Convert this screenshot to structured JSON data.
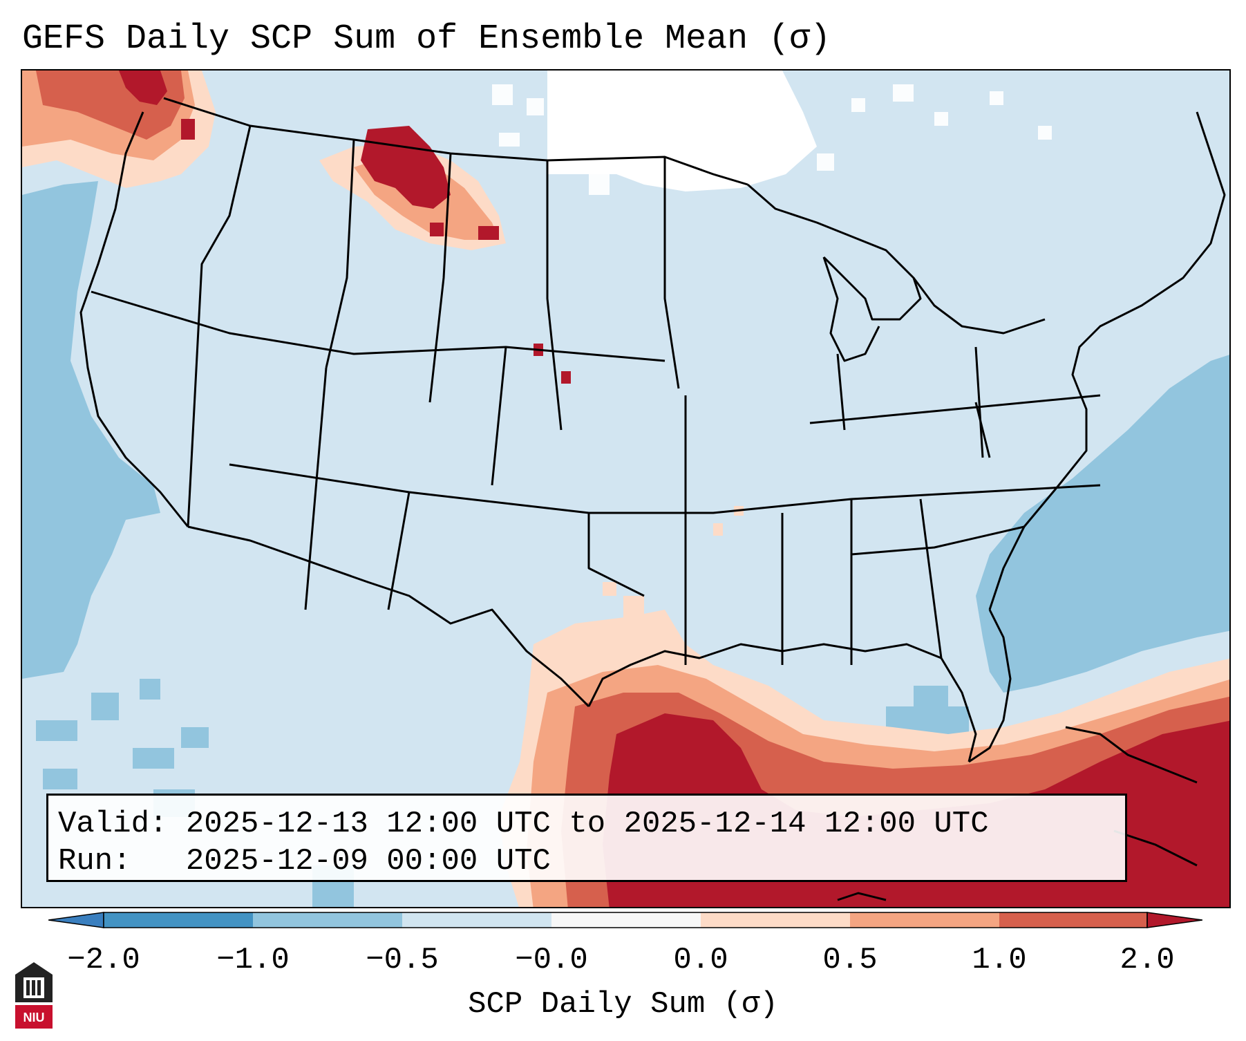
{
  "title": "GEFS Daily SCP Sum of Ensemble Mean (σ)",
  "info": {
    "valid": "Valid: 2025-12-13 12:00 UTC to 2025-12-14 12:00 UTC",
    "run": "Run:   2025-12-09 00:00 UTC"
  },
  "colorbar": {
    "label": "SCP Daily Sum (σ)",
    "ticks": [
      "−2.0",
      "−1.0",
      "−0.5",
      "−0.0",
      "0.0",
      "0.5",
      "1.0",
      "2.0"
    ],
    "colors": {
      "extend_low": "#3a7fbf",
      "bin_m2_m1": "#4393c3",
      "bin_m1_m05": "#92c5de",
      "bin_m05_m0": "#d1e5f0",
      "bin_m0_0": "#f7f7f7",
      "bin_0_05": "#fddbc7",
      "bin_05_1": "#f4a582",
      "bin_1_2": "#d6604d",
      "extend_high": "#b2182b"
    }
  },
  "logo": {
    "text": "NIU",
    "color": "#c8102e"
  }
}
